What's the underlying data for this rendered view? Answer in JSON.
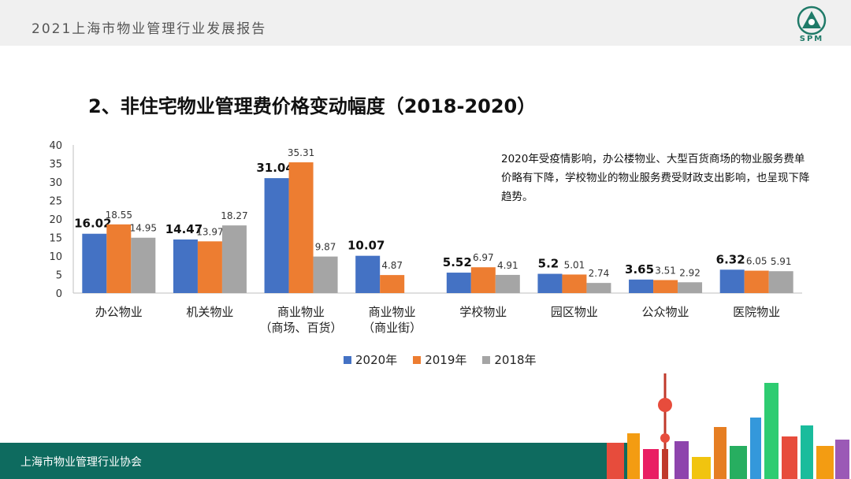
{
  "header": {
    "title": "2021上海市物业管理行业发展报告",
    "logo_text": "SPM"
  },
  "slide_title": "2、非住宅物业管理费价格变动幅度（2018-2020）",
  "note": "2020年受疫情影响，办公楼物业、大型百货商场的物业服务费单价略有下降，学校物业的物业服务费受财政支出影响，也呈现下降趋势。",
  "footer": {
    "org": "上海市物业管理行业协会"
  },
  "colors": {
    "s2020": "#4472c4",
    "s2019": "#ed7d31",
    "s2018": "#a5a5a5",
    "footer": "#0e6b5f"
  },
  "chart_data": {
    "type": "bar",
    "title": "非住宅物业管理费价格变动幅度（2018-2020）",
    "categories": [
      [
        "办公物业"
      ],
      [
        "机关物业"
      ],
      [
        "商业物业",
        "（商场、百货）"
      ],
      [
        "商业物业",
        "（商业街）"
      ],
      [
        "学校物业"
      ],
      [
        "园区物业"
      ],
      [
        "公众物业"
      ],
      [
        "医院物业"
      ]
    ],
    "series": [
      {
        "name": "2020年",
        "values": [
          16.02,
          14.47,
          31.04,
          10.07,
          5.52,
          5.2,
          3.65,
          6.32
        ]
      },
      {
        "name": "2019年",
        "values": [
          18.55,
          13.97,
          35.31,
          4.87,
          6.97,
          5.01,
          3.51,
          6.05
        ]
      },
      {
        "name": "2018年",
        "values": [
          14.95,
          18.27,
          9.87,
          null,
          4.91,
          2.74,
          2.92,
          5.91
        ]
      }
    ],
    "labels": [
      [
        "16.02",
        "18.55",
        "14.95"
      ],
      [
        "14.47",
        "13.97",
        "18.27"
      ],
      [
        "31.04",
        "35.31",
        "9.87"
      ],
      [
        "10.07",
        "4.87",
        ""
      ],
      [
        "5.52",
        "6.97",
        "4.91"
      ],
      [
        "5.2",
        "5.01",
        "2.74"
      ],
      [
        "3.65",
        "3.51",
        "2.92"
      ],
      [
        "6.32",
        "6.05",
        "5.91"
      ]
    ],
    "ylim": [
      0,
      40
    ],
    "yticks": [
      0,
      5,
      10,
      15,
      20,
      25,
      30,
      35,
      40
    ],
    "legend_position": "bottom",
    "grid": false
  }
}
